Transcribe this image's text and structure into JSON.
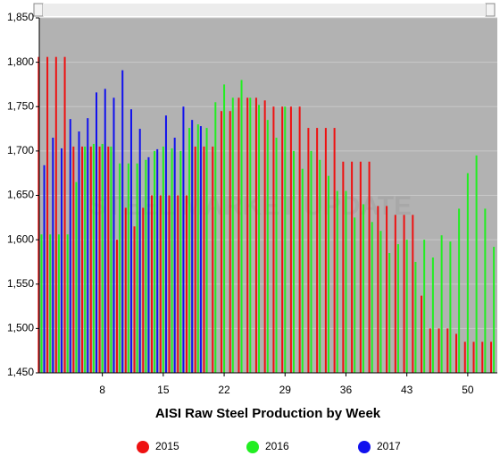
{
  "chart_data": {
    "type": "bar",
    "title": "AISI Raw Steel Production by Week",
    "watermark": "STEEL MARKET UPDATE",
    "x": [
      1,
      2,
      3,
      4,
      5,
      6,
      7,
      8,
      9,
      10,
      11,
      12,
      13,
      14,
      15,
      16,
      17,
      18,
      19,
      20,
      21,
      22,
      23,
      24,
      25,
      26,
      27,
      28,
      29,
      30,
      31,
      32,
      33,
      34,
      35,
      36,
      37,
      38,
      39,
      40,
      41,
      42,
      43,
      44,
      45,
      46,
      47,
      48,
      49,
      50,
      51,
      52,
      53
    ],
    "xlim": [
      0.75,
      53.4
    ],
    "xticks": [
      8,
      15,
      22,
      29,
      36,
      43,
      50
    ],
    "ylim": [
      1450,
      1850
    ],
    "yticks": [
      {
        "value": 1450,
        "label": "1,450"
      },
      {
        "value": 1500,
        "label": "1,500"
      },
      {
        "value": 1550,
        "label": "1,550"
      },
      {
        "value": 1600,
        "label": "1,600"
      },
      {
        "value": 1650,
        "label": "1,650"
      },
      {
        "value": 1700,
        "label": "1,700"
      },
      {
        "value": 1750,
        "label": "1,750"
      },
      {
        "value": 1800,
        "label": "1,800"
      },
      {
        "value": 1850,
        "label": "1,850"
      }
    ],
    "grid": true,
    "series": [
      {
        "name": "2015",
        "color": "#ee1111",
        "values": [
          1806,
          1806,
          1806,
          1806,
          1705,
          1705,
          1705,
          1705,
          1705,
          1600,
          1636,
          1615,
          1636,
          1650,
          1650,
          1650,
          1650,
          1650,
          1705,
          1705,
          1705,
          1745,
          1745,
          1760,
          1760,
          1760,
          1757,
          1750,
          1750,
          1750,
          1750,
          1726,
          1726,
          1726,
          1726,
          1688,
          1688,
          1688,
          1688,
          1638,
          1638,
          1628,
          1628,
          1628,
          1537,
          1500,
          1500,
          1500,
          1494,
          1485,
          1485,
          1485,
          1485
        ]
      },
      {
        "name": "2016",
        "color": "#22ee22",
        "values": [
          1606,
          1606,
          1606,
          1606,
          1665,
          1705,
          1708,
          1708,
          1705,
          1686,
          1686,
          1686,
          1690,
          1700,
          1705,
          1703,
          1700,
          1726,
          1730,
          1726,
          1755,
          1775,
          1760,
          1780,
          1760,
          1752,
          1735,
          1715,
          1750,
          1700,
          1680,
          1700,
          1690,
          1672,
          1655,
          1655,
          1625,
          1640,
          1620,
          1610,
          1585,
          1595,
          1600,
          1575,
          1600,
          1580,
          1605,
          1598,
          1635,
          1675,
          1695,
          1635,
          1592
        ]
      },
      {
        "name": "2017",
        "color": "#1111ee",
        "values": [
          1684,
          1715,
          1703,
          1736,
          1722,
          1737,
          1766,
          1770,
          1760,
          1791,
          1747,
          1725,
          1693,
          1702,
          1740,
          1715,
          1750,
          1735,
          1728,
          null,
          null,
          null,
          null,
          null,
          null,
          null,
          null,
          null,
          null,
          null,
          null,
          null,
          null,
          null,
          null,
          null,
          null,
          null,
          null,
          null,
          null,
          null,
          null,
          null,
          null,
          null,
          null,
          null,
          null,
          null,
          null,
          null,
          null
        ]
      }
    ]
  }
}
